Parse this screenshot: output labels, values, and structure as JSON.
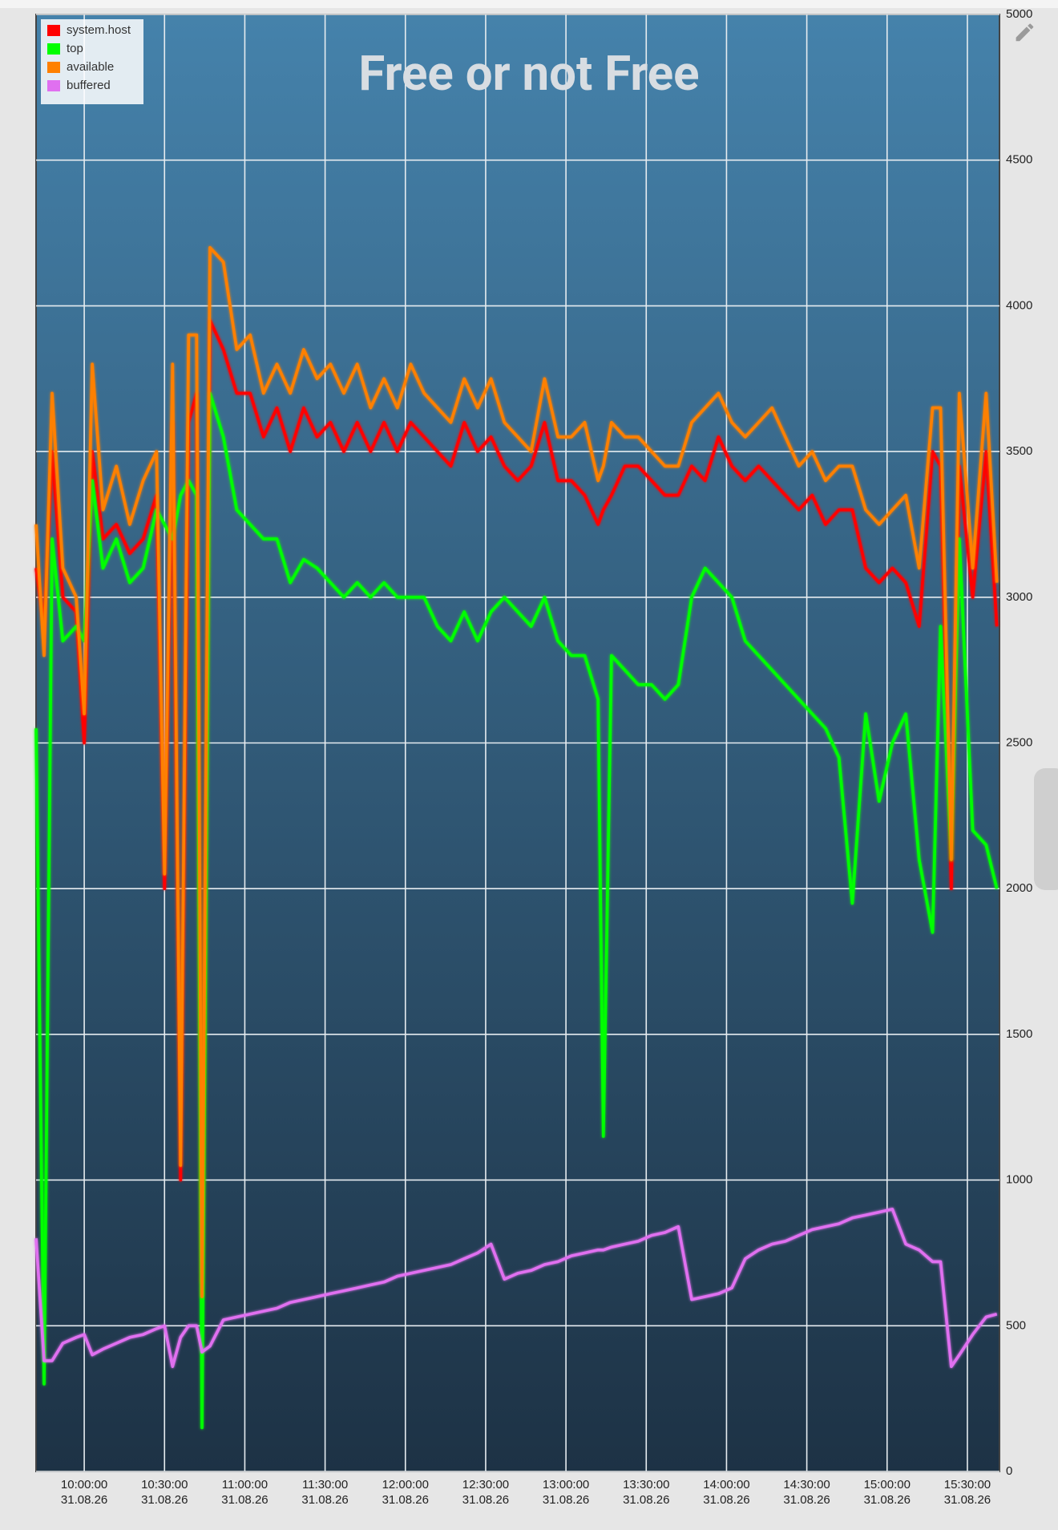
{
  "chart_data": {
    "type": "line",
    "title": "Free or not Free",
    "x": [
      "09:42",
      "09:45",
      "09:48",
      "09:52",
      "09:57",
      "10:00",
      "10:03",
      "10:07",
      "10:12",
      "10:17",
      "10:22",
      "10:27",
      "10:30",
      "10:33",
      "10:36",
      "10:39",
      "10:42",
      "10:44",
      "10:47",
      "10:52",
      "10:57",
      "11:02",
      "11:07",
      "11:12",
      "11:17",
      "11:22",
      "11:27",
      "11:32",
      "11:37",
      "11:42",
      "11:47",
      "11:52",
      "11:57",
      "12:02",
      "12:07",
      "12:12",
      "12:17",
      "12:22",
      "12:27",
      "12:32",
      "12:37",
      "12:42",
      "12:47",
      "12:52",
      "12:57",
      "13:02",
      "13:07",
      "13:12",
      "13:14",
      "13:17",
      "13:22",
      "13:27",
      "13:32",
      "13:37",
      "13:42",
      "13:47",
      "13:52",
      "13:57",
      "14:02",
      "14:07",
      "14:12",
      "14:17",
      "14:22",
      "14:27",
      "14:32",
      "14:37",
      "14:42",
      "14:47",
      "14:52",
      "14:57",
      "15:02",
      "15:07",
      "15:12",
      "15:17",
      "15:20",
      "15:24",
      "15:27",
      "15:32",
      "15:37",
      "15:41"
    ],
    "series": [
      {
        "name": "system.host",
        "color": "#ff0000",
        "values": [
          3100,
          2900,
          3500,
          3000,
          2950,
          2500,
          3500,
          3200,
          3250,
          3150,
          3200,
          3350,
          2000,
          3600,
          1000,
          3600,
          3700,
          650,
          3950,
          3850,
          3700,
          3700,
          3550,
          3650,
          3500,
          3650,
          3550,
          3600,
          3500,
          3600,
          3500,
          3600,
          3500,
          3600,
          3550,
          3500,
          3450,
          3600,
          3500,
          3550,
          3450,
          3400,
          3450,
          3600,
          3400,
          3400,
          3350,
          3250,
          3300,
          3350,
          3450,
          3450,
          3400,
          3350,
          3350,
          3450,
          3400,
          3550,
          3450,
          3400,
          3450,
          3400,
          3350,
          3300,
          3350,
          3250,
          3300,
          3300,
          3100,
          3050,
          3100,
          3050,
          2900,
          3500,
          3450,
          2000,
          3450,
          3000,
          3500,
          2900
        ]
      },
      {
        "name": "top",
        "color": "#00ff00",
        "values": [
          2550,
          300,
          3200,
          2850,
          2900,
          2850,
          3400,
          3100,
          3200,
          3050,
          3100,
          3300,
          3250,
          3200,
          3350,
          3400,
          3350,
          150,
          3700,
          3550,
          3300,
          3250,
          3200,
          3200,
          3050,
          3130,
          3100,
          3050,
          3000,
          3050,
          3000,
          3050,
          3000,
          3000,
          3000,
          2900,
          2850,
          2950,
          2850,
          2950,
          3000,
          2950,
          2900,
          3000,
          2850,
          2800,
          2800,
          2650,
          1150,
          2800,
          2750,
          2700,
          2700,
          2650,
          2700,
          3000,
          3100,
          3050,
          3000,
          2850,
          2800,
          2750,
          2700,
          2650,
          2600,
          2550,
          2450,
          1950,
          2600,
          2300,
          2500,
          2600,
          2100,
          1850,
          2900,
          2100,
          3200,
          2200,
          2150,
          2000
        ]
      },
      {
        "name": "available",
        "color": "#ff8000",
        "values": [
          3250,
          2800,
          3700,
          3100,
          3000,
          2600,
          3800,
          3300,
          3450,
          3250,
          3400,
          3500,
          2050,
          3800,
          1050,
          3900,
          3900,
          600,
          4200,
          4150,
          3850,
          3900,
          3700,
          3800,
          3700,
          3850,
          3750,
          3800,
          3700,
          3800,
          3650,
          3750,
          3650,
          3800,
          3700,
          3650,
          3600,
          3750,
          3650,
          3750,
          3600,
          3550,
          3500,
          3750,
          3550,
          3550,
          3600,
          3400,
          3450,
          3600,
          3550,
          3550,
          3500,
          3450,
          3450,
          3600,
          3650,
          3700,
          3600,
          3550,
          3600,
          3650,
          3550,
          3450,
          3500,
          3400,
          3450,
          3450,
          3300,
          3250,
          3300,
          3350,
          3100,
          3650,
          3650,
          2100,
          3700,
          3100,
          3700,
          3050
        ]
      },
      {
        "name": "buffered",
        "color": "#e070f0",
        "values": [
          800,
          380,
          380,
          440,
          460,
          470,
          400,
          420,
          440,
          460,
          470,
          490,
          500,
          360,
          460,
          500,
          500,
          410,
          430,
          520,
          530,
          540,
          550,
          560,
          580,
          590,
          600,
          610,
          620,
          630,
          640,
          650,
          670,
          680,
          690,
          700,
          710,
          730,
          750,
          780,
          660,
          680,
          690,
          710,
          720,
          740,
          750,
          760,
          760,
          770,
          780,
          790,
          810,
          820,
          840,
          590,
          600,
          610,
          630,
          730,
          760,
          780,
          790,
          810,
          830,
          840,
          850,
          870,
          880,
          890,
          900,
          780,
          760,
          720,
          720,
          360,
          400,
          470,
          530,
          540
        ]
      }
    ],
    "xlim": [
      "09:42",
      "15:42"
    ],
    "xticks": [
      {
        "time": "10:00:00",
        "date": "31.08.26"
      },
      {
        "time": "10:30:00",
        "date": "31.08.26"
      },
      {
        "time": "11:00:00",
        "date": "31.08.26"
      },
      {
        "time": "11:30:00",
        "date": "31.08.26"
      },
      {
        "time": "12:00:00",
        "date": "31.08.26"
      },
      {
        "time": "12:30:00",
        "date": "31.08.26"
      },
      {
        "time": "13:00:00",
        "date": "31.08.26"
      },
      {
        "time": "13:30:00",
        "date": "31.08.26"
      },
      {
        "time": "14:00:00",
        "date": "31.08.26"
      },
      {
        "time": "14:30:00",
        "date": "31.08.26"
      },
      {
        "time": "15:00:00",
        "date": "31.08.26"
      },
      {
        "time": "15:30:00",
        "date": "31.08.26"
      }
    ],
    "ylim": [
      0,
      5000
    ],
    "yticks": [
      0,
      500,
      1000,
      1500,
      2000,
      2500,
      3000,
      3500,
      4000,
      4500,
      5000
    ],
    "grid": true,
    "legend": "top-left"
  }
}
